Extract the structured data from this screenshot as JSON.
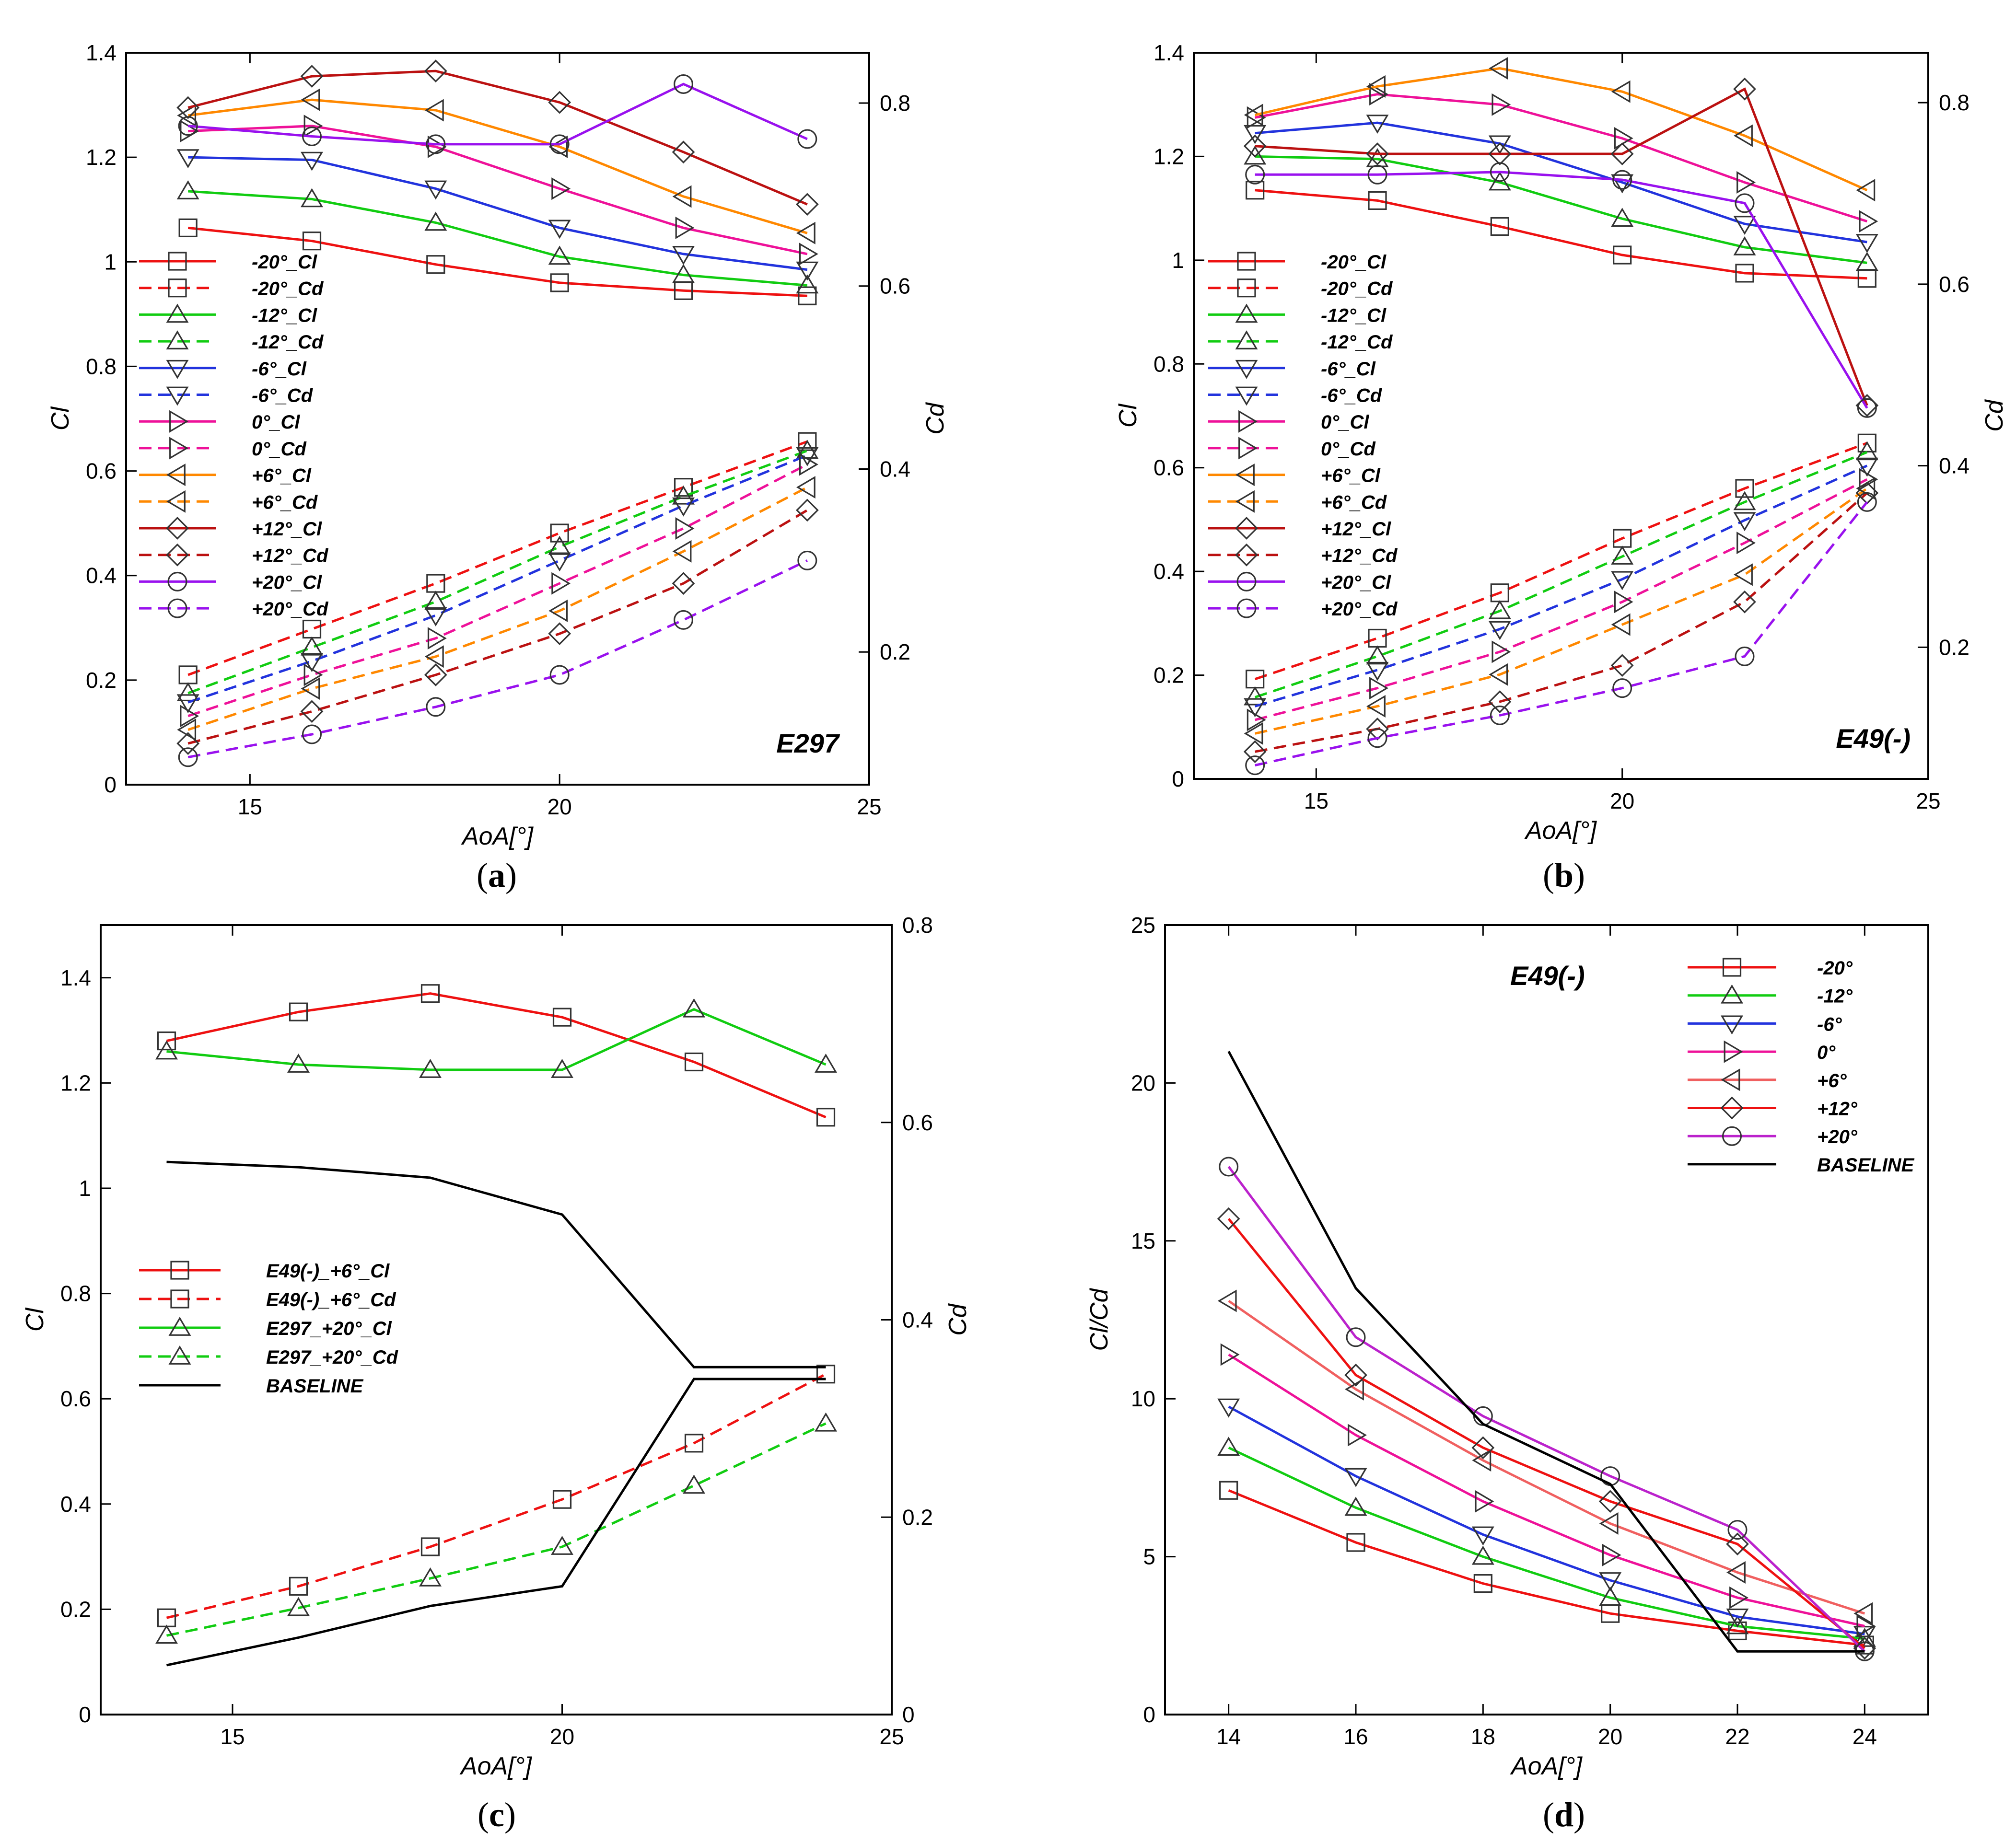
{
  "chart_data": [
    {
      "id": "a",
      "type": "line",
      "title": "E297",
      "caption": "a",
      "xlabel": "AoA[°]",
      "ylabel": "Cl",
      "y2label": "Cd",
      "x": [
        14,
        16,
        18,
        20,
        22,
        24
      ],
      "xlim": [
        13,
        25
      ],
      "ylim": [
        0,
        1.4
      ],
      "y2lim": [
        0.055,
        0.855
      ],
      "xticks": [
        15,
        20,
        25
      ],
      "yticks": [
        "0",
        "0.2",
        "0.4",
        "0.6",
        "0.8",
        "1",
        "1.2",
        "1.4"
      ],
      "y2ticks": [
        "0.2",
        "0.4",
        "0.6",
        "0.8"
      ],
      "series": [
        {
          "name": "-20°_Cl",
          "axis": "left",
          "color": "#ee1111",
          "dash": false,
          "marker": "square",
          "values": [
            1.065,
            1.04,
            0.995,
            0.96,
            0.945,
            0.935
          ]
        },
        {
          "name": "-20°_Cd",
          "axis": "right",
          "color": "#ee1111",
          "dash": true,
          "marker": "square",
          "values": [
            0.175,
            0.225,
            0.275,
            0.33,
            0.38,
            0.43
          ]
        },
        {
          "name": "-12°_Cl",
          "axis": "left",
          "color": "#11cc11",
          "dash": false,
          "marker": "triangle-up",
          "values": [
            1.135,
            1.12,
            1.075,
            1.01,
            0.975,
            0.955
          ]
        },
        {
          "name": "-12°_Cd",
          "axis": "right",
          "color": "#11cc11",
          "dash": true,
          "marker": "triangle-up",
          "values": [
            0.155,
            0.205,
            0.255,
            0.315,
            0.37,
            0.42
          ]
        },
        {
          "name": "-6°_Cl",
          "axis": "left",
          "color": "#2233dd",
          "dash": false,
          "marker": "triangle-down",
          "values": [
            1.2,
            1.195,
            1.14,
            1.065,
            1.015,
            0.985
          ]
        },
        {
          "name": "-6°_Cd",
          "axis": "right",
          "color": "#2233dd",
          "dash": true,
          "marker": "triangle-down",
          "values": [
            0.145,
            0.19,
            0.24,
            0.3,
            0.36,
            0.415
          ]
        },
        {
          "name": "0°_Cl",
          "axis": "left",
          "color": "#ee1199",
          "dash": false,
          "marker": "triangle-right",
          "values": [
            1.25,
            1.26,
            1.22,
            1.14,
            1.065,
            1.015
          ]
        },
        {
          "name": "0°_Cd",
          "axis": "right",
          "color": "#ee1199",
          "dash": true,
          "marker": "triangle-right",
          "values": [
            0.13,
            0.175,
            0.215,
            0.275,
            0.335,
            0.405
          ]
        },
        {
          "name": "+6°_Cl",
          "axis": "left",
          "color": "#ff8800",
          "dash": false,
          "marker": "triangle-left",
          "values": [
            1.28,
            1.31,
            1.29,
            1.22,
            1.125,
            1.055
          ]
        },
        {
          "name": "+6°_Cd",
          "axis": "right",
          "color": "#ff8800",
          "dash": true,
          "marker": "triangle-left",
          "values": [
            0.115,
            0.16,
            0.195,
            0.245,
            0.31,
            0.38
          ]
        },
        {
          "name": "+12°_Cl",
          "axis": "left",
          "color": "#bb1111",
          "dash": false,
          "marker": "diamond",
          "values": [
            1.295,
            1.355,
            1.365,
            1.305,
            1.21,
            1.11
          ]
        },
        {
          "name": "+12°_Cd",
          "axis": "right",
          "color": "#bb1111",
          "dash": true,
          "marker": "diamond",
          "values": [
            0.1,
            0.135,
            0.175,
            0.22,
            0.275,
            0.355
          ]
        },
        {
          "name": "+20°_Cl",
          "axis": "left",
          "color": "#9911ee",
          "dash": false,
          "marker": "circle",
          "values": [
            1.26,
            1.24,
            1.225,
            1.225,
            1.34,
            1.235
          ]
        },
        {
          "name": "+20°_Cd",
          "axis": "right",
          "color": "#9911ee",
          "dash": true,
          "marker": "circle",
          "values": [
            0.085,
            0.11,
            0.14,
            0.175,
            0.235,
            0.3
          ]
        }
      ]
    },
    {
      "id": "b",
      "type": "line",
      "title": "E49(-)",
      "caption": "b",
      "xlabel": "AoA[°]",
      "ylabel": "Cl",
      "y2label": "Cd",
      "x": [
        14,
        16,
        18,
        20,
        22,
        24
      ],
      "xlim": [
        13,
        25
      ],
      "ylim": [
        0,
        1.4
      ],
      "y2lim": [
        0.055,
        0.855
      ],
      "xticks": [
        15,
        20,
        25
      ],
      "yticks": [
        "0",
        "0.2",
        "0.4",
        "0.6",
        "0.8",
        "1",
        "1.2",
        "1.4"
      ],
      "y2ticks": [
        "0.2",
        "0.4",
        "0.6",
        "0.8"
      ],
      "series": [
        {
          "name": "-20°_Cl",
          "axis": "left",
          "color": "#ee1111",
          "dash": false,
          "marker": "square",
          "values": [
            1.135,
            1.115,
            1.065,
            1.01,
            0.975,
            0.965
          ]
        },
        {
          "name": "-20°_Cd",
          "axis": "right",
          "color": "#ee1111",
          "dash": true,
          "marker": "square",
          "values": [
            0.165,
            0.21,
            0.26,
            0.32,
            0.375,
            0.425
          ]
        },
        {
          "name": "-12°_Cl",
          "axis": "left",
          "color": "#11cc11",
          "dash": false,
          "marker": "triangle-up",
          "values": [
            1.2,
            1.195,
            1.15,
            1.08,
            1.025,
            0.995
          ]
        },
        {
          "name": "-12°_Cd",
          "axis": "right",
          "color": "#11cc11",
          "dash": true,
          "marker": "triangle-up",
          "values": [
            0.145,
            0.19,
            0.24,
            0.3,
            0.36,
            0.415
          ]
        },
        {
          "name": "-6°_Cl",
          "axis": "left",
          "color": "#2233dd",
          "dash": false,
          "marker": "triangle-down",
          "values": [
            1.245,
            1.265,
            1.225,
            1.15,
            1.07,
            1.035
          ]
        },
        {
          "name": "-6°_Cd",
          "axis": "right",
          "color": "#2233dd",
          "dash": true,
          "marker": "triangle-down",
          "values": [
            0.135,
            0.175,
            0.22,
            0.275,
            0.34,
            0.4
          ]
        },
        {
          "name": "0°_Cl",
          "axis": "left",
          "color": "#ee1199",
          "dash": false,
          "marker": "triangle-right",
          "values": [
            1.275,
            1.32,
            1.3,
            1.235,
            1.15,
            1.075
          ]
        },
        {
          "name": "0°_Cd",
          "axis": "right",
          "color": "#ee1199",
          "dash": true,
          "marker": "triangle-right",
          "values": [
            0.12,
            0.155,
            0.195,
            0.25,
            0.315,
            0.385
          ]
        },
        {
          "name": "+6°_Cl",
          "axis": "left",
          "color": "#ff8800",
          "dash": false,
          "marker": "triangle-left",
          "values": [
            1.28,
            1.335,
            1.37,
            1.325,
            1.24,
            1.135
          ]
        },
        {
          "name": "+6°_Cd",
          "axis": "right",
          "color": "#ff8800",
          "dash": true,
          "marker": "triangle-left",
          "values": [
            0.105,
            0.135,
            0.17,
            0.225,
            0.28,
            0.375
          ]
        },
        {
          "name": "+12°_Cl",
          "axis": "left",
          "color": "#bb1111",
          "dash": false,
          "marker": "diamond",
          "values": [
            1.22,
            1.205,
            1.205,
            1.205,
            1.33,
            0.72
          ]
        },
        {
          "name": "+12°_Cd",
          "axis": "right",
          "color": "#bb1111",
          "dash": true,
          "marker": "diamond",
          "values": [
            0.085,
            0.11,
            0.14,
            0.18,
            0.25,
            0.37
          ]
        },
        {
          "name": "+20°_Cl",
          "axis": "left",
          "color": "#9911ee",
          "dash": false,
          "marker": "circle",
          "values": [
            1.165,
            1.165,
            1.17,
            1.155,
            1.11,
            0.715
          ]
        },
        {
          "name": "+20°_Cd",
          "axis": "right",
          "color": "#9911ee",
          "dash": true,
          "marker": "circle",
          "values": [
            0.07,
            0.1,
            0.125,
            0.155,
            0.19,
            0.36
          ]
        }
      ]
    },
    {
      "id": "c",
      "type": "line",
      "title": "",
      "caption": "c",
      "xlabel": "AoA[°]",
      "ylabel": "Cl",
      "y2label": "Cd",
      "x": [
        14,
        16,
        18,
        20,
        22,
        24
      ],
      "xlim": [
        13,
        25
      ],
      "ylim": [
        0,
        1.5
      ],
      "y2lim": [
        0,
        0.8
      ],
      "xticks": [
        15,
        20,
        25
      ],
      "yticks": [
        "0",
        "0.2",
        "0.4",
        "0.6",
        "0.8",
        "1",
        "1.2",
        "1.4"
      ],
      "y2ticks": [
        "0",
        "0.2",
        "0.4",
        "0.6",
        "0.8"
      ],
      "series": [
        {
          "name": "E49(-)_+6°_Cl",
          "axis": "left",
          "color": "#ee1111",
          "dash": false,
          "marker": "square",
          "values": [
            1.28,
            1.335,
            1.37,
            1.325,
            1.24,
            1.135
          ]
        },
        {
          "name": "E49(-)_+6°_Cd",
          "axis": "right",
          "color": "#ee1111",
          "dash": true,
          "marker": "square",
          "values": [
            0.098,
            0.13,
            0.17,
            0.218,
            0.275,
            0.345
          ]
        },
        {
          "name": "E297_+20°_Cl",
          "axis": "left",
          "color": "#11cc11",
          "dash": false,
          "marker": "triangle-up",
          "values": [
            1.26,
            1.235,
            1.225,
            1.225,
            1.34,
            1.235
          ]
        },
        {
          "name": "E297_+20°_Cd",
          "axis": "right",
          "color": "#11cc11",
          "dash": true,
          "marker": "triangle-up",
          "values": [
            0.08,
            0.108,
            0.138,
            0.17,
            0.232,
            0.295
          ]
        },
        {
          "name": "BASELINE",
          "axis": "left",
          "color": "#000000",
          "dash": false,
          "marker": "none",
          "values": [
            1.05,
            1.04,
            1.02,
            0.95,
            0.66,
            0.66
          ]
        },
        {
          "name": "BASELINE (Cd)",
          "axis": "right",
          "legend": false,
          "color": "#000000",
          "dash": false,
          "marker": "none",
          "values": [
            0.05,
            0.078,
            0.11,
            0.13,
            0.34,
            0.34
          ]
        }
      ]
    },
    {
      "id": "d",
      "type": "line",
      "title": "E49(-)",
      "caption": "d",
      "xlabel": "AoA[°]",
      "ylabel": "Cl/Cd",
      "y2label": "",
      "x": [
        14,
        16,
        18,
        20,
        22,
        24
      ],
      "xlim": [
        13,
        25
      ],
      "ylim": [
        0,
        25
      ],
      "xticks": [
        14,
        16,
        18,
        20,
        22,
        24
      ],
      "yticks": [
        "0",
        "5",
        "10",
        "15",
        "20",
        "25"
      ],
      "y2ticks": [],
      "series": [
        {
          "name": "-20°",
          "axis": "left",
          "color": "#ee1111",
          "dash": false,
          "marker": "square",
          "values": [
            7.1,
            5.45,
            4.15,
            3.2,
            2.65,
            2.2
          ]
        },
        {
          "name": "-12°",
          "axis": "left",
          "color": "#11cc11",
          "dash": false,
          "marker": "triangle-up",
          "values": [
            8.45,
            6.55,
            5.0,
            3.7,
            2.8,
            2.4
          ]
        },
        {
          "name": "-6°",
          "axis": "left",
          "color": "#2233dd",
          "dash": false,
          "marker": "triangle-down",
          "values": [
            9.75,
            7.55,
            5.7,
            4.25,
            3.1,
            2.55
          ]
        },
        {
          "name": "0°",
          "axis": "left",
          "color": "#ee1199",
          "dash": false,
          "marker": "triangle-right",
          "values": [
            11.4,
            8.85,
            6.75,
            5.05,
            3.7,
            2.8
          ]
        },
        {
          "name": "+6°",
          "axis": "left",
          "color": "#f06060",
          "dash": false,
          "marker": "triangle-left",
          "values": [
            13.1,
            10.3,
            8.05,
            6.05,
            4.5,
            3.2
          ]
        },
        {
          "name": "+12°",
          "axis": "left",
          "color": "#ee1111",
          "dash": false,
          "marker": "diamond",
          "values": [
            15.7,
            10.75,
            8.45,
            6.75,
            5.4,
            2.1
          ]
        },
        {
          "name": "+20°",
          "axis": "left",
          "color": "#bb22cc",
          "dash": false,
          "marker": "circle",
          "values": [
            17.35,
            11.95,
            9.45,
            7.55,
            5.85,
            2.0
          ]
        },
        {
          "name": "BASELINE",
          "axis": "left",
          "color": "#000000",
          "dash": false,
          "marker": "none",
          "values": [
            21.0,
            13.5,
            9.2,
            7.3,
            2.0,
            2.0
          ]
        }
      ]
    }
  ]
}
